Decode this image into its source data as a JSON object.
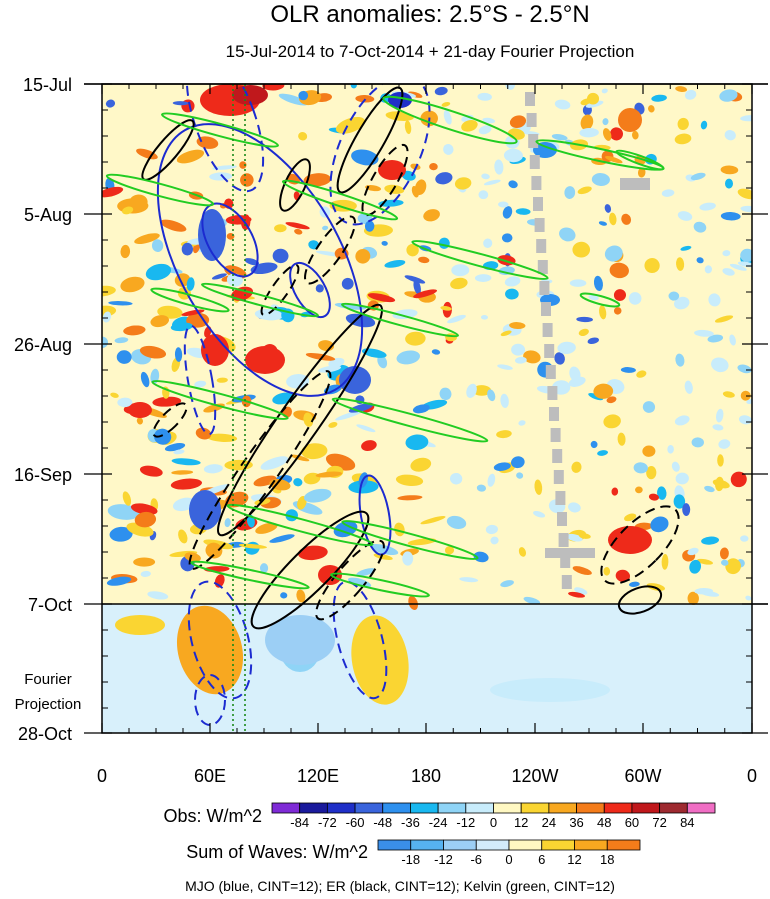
{
  "chart_data": {
    "type": "heatmap",
    "title": "OLR anomalies: 2.5°S - 2.5°N",
    "subtitle": "15-Jul-2014 to 7-Oct-2014 + 21-day Fourier Projection",
    "xlabel": "",
    "ylabel": "",
    "x_ticks": [
      "0",
      "60E",
      "120E",
      "180",
      "120W",
      "60W",
      "0"
    ],
    "y_ticks": [
      "15-Jul",
      "5-Aug",
      "26-Aug",
      "16-Sep",
      "7-Oct",
      "28-Oct"
    ],
    "projection_label_lines": [
      "Fourier",
      "Projection"
    ],
    "obs_colorbar": {
      "label": "Obs: W/m^2",
      "levels": [
        "-84",
        "-72",
        "-60",
        "-48",
        "-36",
        "-24",
        "-12",
        "0",
        "12",
        "24",
        "36",
        "48",
        "60",
        "72",
        "84"
      ],
      "colors": [
        "#7f2bd6",
        "#1a1a9c",
        "#1f2fc8",
        "#3a64dc",
        "#2e90ee",
        "#19b8f0",
        "#8fd4f6",
        "#c8ecfb",
        "#fff8c2",
        "#fad532",
        "#f8a820",
        "#f47c1a",
        "#ee2a1a",
        "#c0181c",
        "#9e2a30",
        "#f06ec4"
      ]
    },
    "waves_colorbar": {
      "label": "Sum of Waves: W/m^2",
      "levels": [
        "-18",
        "-12",
        "-6",
        "0",
        "6",
        "12",
        "18"
      ],
      "colors": [
        "#3a8ee8",
        "#56b2f0",
        "#9ccff5",
        "#d2ecfb",
        "#fff8c2",
        "#fad532",
        "#f8a820",
        "#f47c1a"
      ]
    },
    "footer": "MJO (blue, CINT=12); ER (black, CINT=12); Kelvin (green, CINT=12)",
    "series": [
      {
        "name": "MJO",
        "color": "#1c2bd0"
      },
      {
        "name": "ER",
        "color": "#000000"
      },
      {
        "name": "Kelvin",
        "color": "#22cc22"
      }
    ]
  }
}
